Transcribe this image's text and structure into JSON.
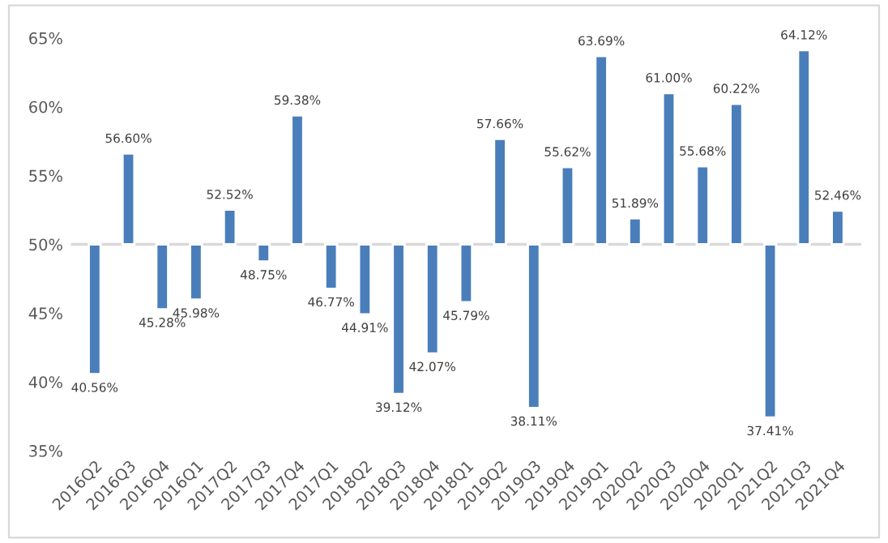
{
  "chart_data": {
    "type": "bar",
    "categories": [
      "2016Q2",
      "2016Q3",
      "2016Q4",
      "2016Q1",
      "2017Q2",
      "2017Q3",
      "2017Q4",
      "2017Q1",
      "2018Q2",
      "2018Q3",
      "2018Q4",
      "2018Q1",
      "2019Q2",
      "2019Q3",
      "2019Q4",
      "2019Q1",
      "2020Q2",
      "2020Q3",
      "2020Q4",
      "2020Q1",
      "2021Q2",
      "2021Q3",
      "2021Q4"
    ],
    "base": [
      50,
      50,
      50,
      50,
      50,
      50,
      50,
      50,
      50,
      50,
      50,
      50,
      50,
      50,
      50,
      50,
      50,
      50,
      50,
      50,
      50,
      50,
      50
    ],
    "values": [
      -9.44,
      6.6,
      -4.72,
      -4.02,
      2.52,
      -1.25,
      9.38,
      -3.23,
      -5.09,
      -10.88,
      -7.93,
      -4.21,
      7.66,
      -11.89,
      5.62,
      13.69,
      1.89,
      11.0,
      5.68,
      10.22,
      -12.59,
      14.12,
      2.46
    ],
    "value_labels": [
      "40.56%",
      "56.60%",
      "45.28%",
      "45.98%",
      "52.52%",
      "48.75%",
      "59.38%",
      "46.77%",
      "44.91%",
      "39.12%",
      "42.07%",
      "45.79%",
      "57.66%",
      "38.11%",
      "55.62%",
      "63.69%",
      "51.89%",
      "61.00%",
      "55.68%",
      "60.22%",
      "37.41%",
      "64.12%",
      "52.46%"
    ],
    "color": "#4a7ebb",
    "ylim": [
      35,
      65
    ],
    "yticks": [
      {
        "value": 35,
        "label": "35%"
      },
      {
        "value": 40,
        "label": "40%"
      },
      {
        "value": 45,
        "label": "45%"
      },
      {
        "value": 50,
        "label": "50%"
      },
      {
        "value": 55,
        "label": "55%"
      },
      {
        "value": 60,
        "label": "60%"
      },
      {
        "value": 65,
        "label": "65%"
      }
    ],
    "ref_lines": [
      {
        "axis": "y",
        "value": 50,
        "color": "#d9d9d9"
      }
    ],
    "grid": false,
    "legend": false
  }
}
